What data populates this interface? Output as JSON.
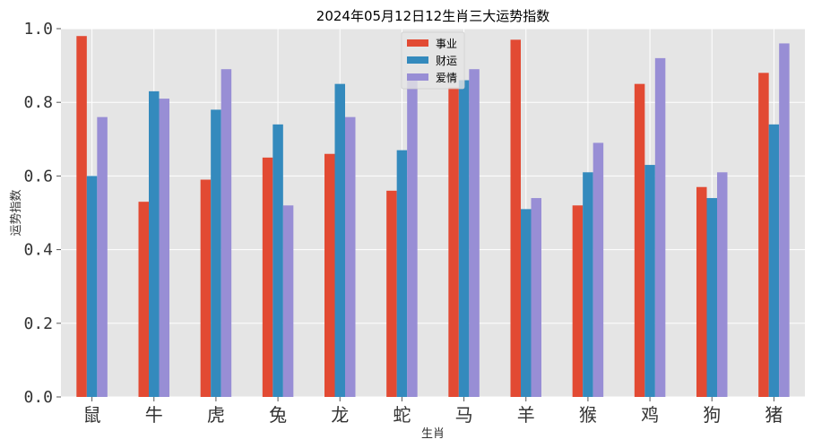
{
  "chart_data": {
    "type": "bar",
    "title": "2024年05月12日12生肖三大运势指数",
    "xlabel": "生肖",
    "ylabel": "运势指数",
    "ylim": [
      0,
      1.0
    ],
    "yticks": [
      "0.0",
      "0.2",
      "0.4",
      "0.6",
      "0.8",
      "1.0"
    ],
    "grid": true,
    "legend_position": "top-center",
    "categories": [
      "鼠",
      "牛",
      "虎",
      "兔",
      "龙",
      "蛇",
      "马",
      "羊",
      "猴",
      "鸡",
      "狗",
      "猪"
    ],
    "series": [
      {
        "name": "事业",
        "color": "#E24A33",
        "values": [
          0.98,
          0.53,
          0.59,
          0.65,
          0.66,
          0.56,
          0.84,
          0.97,
          0.52,
          0.85,
          0.57,
          0.88
        ]
      },
      {
        "name": "财运",
        "color": "#348ABD",
        "values": [
          0.6,
          0.83,
          0.78,
          0.74,
          0.85,
          0.67,
          0.86,
          0.51,
          0.61,
          0.63,
          0.54,
          0.74
        ]
      },
      {
        "name": "爱情",
        "color": "#988ED5",
        "values": [
          0.76,
          0.81,
          0.89,
          0.52,
          0.76,
          0.87,
          0.89,
          0.54,
          0.69,
          0.92,
          0.61,
          0.96
        ]
      }
    ]
  }
}
